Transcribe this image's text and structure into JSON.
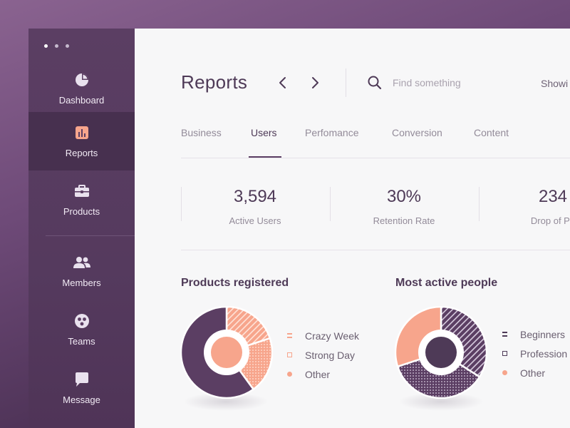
{
  "sidebar": {
    "items": [
      {
        "label": "Dashboard",
        "icon": "pie-chart-icon"
      },
      {
        "label": "Reports",
        "icon": "bar-chart-icon"
      },
      {
        "label": "Products",
        "icon": "briefcase-icon"
      },
      {
        "label": "Members",
        "icon": "people-icon"
      },
      {
        "label": "Teams",
        "icon": "teams-icon"
      },
      {
        "label": "Message",
        "icon": "message-icon"
      }
    ],
    "active": "Reports"
  },
  "header": {
    "title": "Reports",
    "search_placeholder": "Find something",
    "showing_label": "Showi"
  },
  "tabs": [
    {
      "label": "Business"
    },
    {
      "label": "Users",
      "active": true
    },
    {
      "label": "Perfomance"
    },
    {
      "label": "Conversion"
    },
    {
      "label": "Content"
    }
  ],
  "stats": [
    {
      "value": "3,594",
      "label": "Active Users"
    },
    {
      "value": "30%",
      "label": "Retention Rate"
    },
    {
      "value": "234",
      "label": "Drop of Po"
    }
  ],
  "colors": {
    "brand_purple": "#5b3e63",
    "dark_purple": "#4e3a57",
    "salmon": "#f7a58c",
    "background": "#f7f7f8"
  },
  "chart_data": [
    {
      "type": "pie",
      "title": "Products registered",
      "categories": [
        "Crazy Week",
        "Strong Day",
        "Other"
      ],
      "values": [
        20,
        20,
        60
      ],
      "colors": [
        "#f7a58c",
        "#f7a58c",
        "#5b3e63"
      ],
      "patterns": [
        "diagonal-lines",
        "dots",
        "solid"
      ]
    },
    {
      "type": "pie",
      "title": "Most active people",
      "categories": [
        "Beginners",
        "Profession",
        "Other"
      ],
      "values": [
        34,
        36,
        30
      ],
      "colors": [
        "#5b3e63",
        "#5b3e63",
        "#f7a58c"
      ],
      "patterns": [
        "diagonal-lines",
        "dots",
        "solid"
      ]
    }
  ]
}
